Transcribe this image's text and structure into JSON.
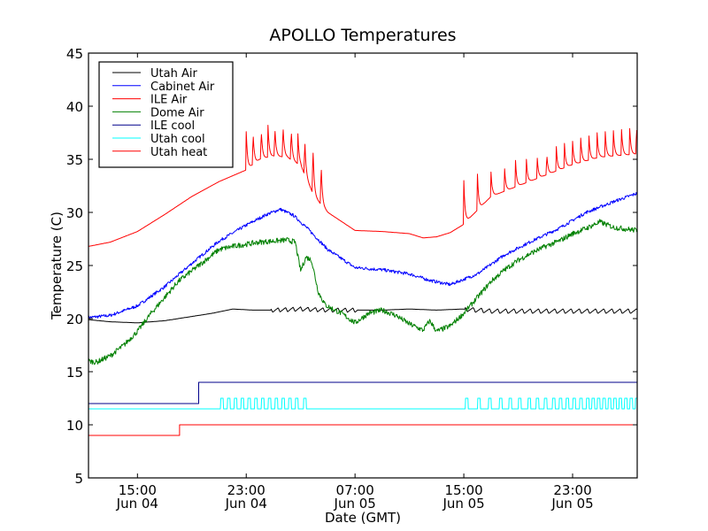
{
  "chart_data": {
    "type": "line",
    "title": "APOLLO Temperatures",
    "xlabel": "Date (GMT)",
    "ylabel": "Temperature (C)",
    "ylim": [
      5,
      45
    ],
    "xlim_hours": [
      -3.6,
      36.75
    ],
    "x_reference": "Hours relative to 15:00 Jun 04 (GMT)",
    "yticks": [
      5,
      10,
      15,
      20,
      25,
      30,
      35,
      40,
      45
    ],
    "xticks": [
      {
        "hour": 0,
        "label1": "15:00",
        "label2": "Jun 04"
      },
      {
        "hour": 8,
        "label1": "23:00",
        "label2": "Jun 04"
      },
      {
        "hour": 16,
        "label1": "07:00",
        "label2": "Jun 05"
      },
      {
        "hour": 24,
        "label1": "15:00",
        "label2": "Jun 05"
      },
      {
        "hour": 32,
        "label1": "23:00",
        "label2": "Jun 05"
      }
    ],
    "grid": false,
    "legend_position": "top-left",
    "series": [
      {
        "name": "Utah Air",
        "color": "#000000",
        "x": [
          -3.6,
          -2,
          0,
          2,
          4,
          5.5,
          7,
          8.5,
          10,
          12,
          14,
          16,
          18,
          20,
          22,
          23.9,
          26,
          28,
          30,
          32,
          34,
          36.75
        ],
        "y": [
          19.9,
          19.7,
          19.6,
          19.8,
          20.2,
          20.5,
          20.9,
          20.8,
          20.8,
          20.9,
          20.8,
          20.8,
          20.8,
          20.9,
          20.8,
          20.9,
          20.7,
          20.7,
          20.7,
          20.7,
          20.7,
          20.7
        ],
        "oscillation": [
          {
            "from": 9.8,
            "to": 16.2,
            "period": 0.55,
            "amplitude": 0.45
          },
          {
            "from": 24.1,
            "to": 36.75,
            "period": 0.6,
            "amplitude": 0.5
          }
        ]
      },
      {
        "name": "Cabinet Air",
        "color": "#0000ff",
        "x": [
          -3.6,
          -2,
          0,
          2,
          4,
          6,
          8,
          9.5,
          10.5,
          11.5,
          12.5,
          14,
          16,
          18,
          20,
          21.5,
          23,
          25,
          27,
          29,
          31,
          33,
          35,
          36.75
        ],
        "y": [
          20.1,
          20.3,
          21.2,
          23.0,
          25.2,
          27.3,
          28.8,
          29.8,
          30.3,
          29.7,
          28.5,
          26.5,
          24.8,
          24.6,
          24.2,
          23.6,
          23.2,
          24.2,
          26.0,
          27.3,
          28.5,
          30.0,
          31.0,
          31.8
        ],
        "noise": 0.15
      },
      {
        "name": "ILE Air",
        "color": "#ff0000",
        "x": [
          -3.6,
          -2,
          0,
          2,
          4,
          6,
          8,
          9,
          10,
          11,
          12,
          13,
          14,
          16,
          18,
          20,
          21,
          22,
          23,
          23.9,
          26,
          28,
          30,
          32,
          34,
          36.75
        ],
        "y": [
          26.8,
          27.2,
          28.2,
          29.8,
          31.5,
          32.9,
          34.0,
          35.0,
          35.3,
          35.2,
          34.4,
          31.5,
          30.0,
          28.3,
          28.2,
          28.0,
          27.6,
          27.7,
          28.1,
          28.8,
          31.5,
          32.5,
          33.5,
          34.5,
          35.2,
          35.5
        ],
        "spikes": [
          {
            "hour": 8.0,
            "peak": 37.6
          },
          {
            "hour": 8.5,
            "peak": 37.7
          },
          {
            "hour": 9.1,
            "peak": 37.9
          },
          {
            "hour": 9.6,
            "peak": 38.2
          },
          {
            "hour": 10.1,
            "peak": 38.2
          },
          {
            "hour": 10.7,
            "peak": 38.4
          },
          {
            "hour": 11.3,
            "peak": 38.0
          },
          {
            "hour": 11.8,
            "peak": 37.4
          },
          {
            "hour": 12.3,
            "peak": 37.2
          },
          {
            "hour": 12.9,
            "peak": 36.6
          },
          {
            "hour": 13.5,
            "peak": 34.8
          },
          {
            "hour": 24.0,
            "peak": 33.0
          },
          {
            "hour": 25.0,
            "peak": 33.6
          },
          {
            "hour": 26.0,
            "peak": 33.8
          },
          {
            "hour": 27.0,
            "peak": 34.1
          },
          {
            "hour": 27.8,
            "peak": 34.9
          },
          {
            "hour": 28.6,
            "peak": 35.0
          },
          {
            "hour": 29.4,
            "peak": 35.1
          },
          {
            "hour": 30.1,
            "peak": 35.6
          },
          {
            "hour": 30.8,
            "peak": 36.2
          },
          {
            "hour": 31.4,
            "peak": 36.5
          },
          {
            "hour": 32.0,
            "peak": 36.7
          },
          {
            "hour": 32.6,
            "peak": 37.0
          },
          {
            "hour": 33.2,
            "peak": 37.2
          },
          {
            "hour": 33.8,
            "peak": 37.5
          },
          {
            "hour": 34.4,
            "peak": 37.6
          },
          {
            "hour": 35.0,
            "peak": 37.7
          },
          {
            "hour": 35.6,
            "peak": 37.8
          },
          {
            "hour": 36.2,
            "peak": 37.9
          },
          {
            "hour": 36.7,
            "peak": 38.3
          }
        ]
      },
      {
        "name": "Dome Air",
        "color": "#008000",
        "x": [
          -3.6,
          -3,
          -2,
          -1,
          0,
          1,
          2,
          3,
          4,
          5,
          6,
          7,
          8,
          9,
          10,
          11,
          11.6,
          12.0,
          12.4,
          12.8,
          13.3,
          13.8,
          14.2,
          15,
          16,
          17,
          18,
          19,
          20,
          21,
          21.5,
          22,
          23,
          24,
          25,
          26,
          27,
          28,
          29,
          30,
          31,
          32,
          33,
          34,
          35,
          36.75
        ],
        "y": [
          16.0,
          15.9,
          16.5,
          17.5,
          18.8,
          20.5,
          22.0,
          23.5,
          24.5,
          25.5,
          26.5,
          26.8,
          27.0,
          27.2,
          27.3,
          27.4,
          27.2,
          24.5,
          25.8,
          25.5,
          22.5,
          21.3,
          21.0,
          20.5,
          19.6,
          20.5,
          20.8,
          20.3,
          19.5,
          18.9,
          19.8,
          18.8,
          19.3,
          20.5,
          22.0,
          23.5,
          24.6,
          25.5,
          26.2,
          26.8,
          27.3,
          28.0,
          28.5,
          29.1,
          28.6,
          28.3
        ],
        "noise": 0.25
      },
      {
        "name": "ILE cool",
        "color": "#00008b",
        "x": [
          -3.6,
          4.5,
          4.5,
          36.75
        ],
        "y": [
          12.0,
          12.0,
          14.0,
          14.0
        ]
      },
      {
        "name": "Utah cool",
        "color": "#00ffff",
        "x": [
          -3.6,
          36.75
        ],
        "y": [
          11.5,
          11.5
        ],
        "pulses": {
          "level": 12.5,
          "width_hours": 0.2,
          "hours": [
            6.1,
            6.6,
            7.1,
            7.6,
            8.1,
            8.6,
            9.1,
            9.6,
            10.1,
            10.6,
            11.1,
            11.6,
            12.2,
            24.1,
            25.0,
            25.8,
            26.6,
            27.3,
            28.0,
            28.7,
            29.3,
            29.9,
            30.5,
            31.0,
            31.5,
            32.0,
            32.5,
            33.0,
            33.4,
            33.8,
            34.2,
            34.6,
            35.0,
            35.4,
            35.8,
            36.2,
            36.6
          ]
        }
      },
      {
        "name": "Utah heat",
        "color": "#ff0000",
        "x": [
          -3.6,
          3.1,
          3.1,
          36.75
        ],
        "y": [
          9.0,
          9.0,
          10.0,
          10.0
        ]
      }
    ]
  }
}
